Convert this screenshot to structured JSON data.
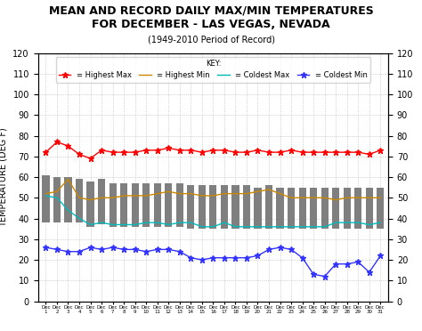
{
  "chart_data": {
    "type": "bar",
    "title": "MEAN AND RECORD DAILY MAX/MIN TEMPERATURES\nFOR DECEMBER - LAS VEGAS, NEVADA",
    "subtitle": "(1949-2010 Period of Record)",
    "y_label": "TEMPERATURE (DEG F)",
    "categories": [
      "Dec\n1",
      "Dec\n2",
      "Dec\n3",
      "Dec\n4",
      "Dec\n5",
      "Dec\n6",
      "Dec\n7",
      "Dec\n8",
      "Dec\n9",
      "Dec\n10",
      "Dec\n11",
      "Dec\n12",
      "Dec\n13",
      "Dec\n14",
      "Dec\n15",
      "Dec\n16",
      "Dec\n17",
      "Dec\n18",
      "Dec\n19",
      "Dec\n20",
      "Dec\n21",
      "Dec\n22",
      "Dec\n23",
      "Dec\n24",
      "Dec\n25",
      "Dec\n26",
      "Dec\n27",
      "Dec\n28",
      "Dec\n29",
      "Dec\n30",
      "Dec\n31"
    ],
    "series": [
      {
        "type": "bar",
        "bottoms": [
          38,
          38,
          38,
          38,
          36,
          37,
          36,
          36,
          36,
          36,
          36,
          36,
          36,
          35,
          35,
          35,
          35,
          35,
          35,
          35,
          35,
          35,
          35,
          35,
          35,
          35,
          35,
          35,
          35,
          35,
          35
        ],
        "values": [
          61,
          60,
          60,
          59,
          58,
          59,
          57,
          57,
          57,
          57,
          57,
          57,
          57,
          56,
          56,
          56,
          56,
          56,
          56,
          55,
          56,
          55,
          55,
          55,
          55,
          55,
          55,
          55,
          55,
          55,
          55
        ]
      },
      {
        "type": "line",
        "name": "= Highest Max",
        "color": "#ff0000",
        "marker": "star",
        "values": [
          72,
          77,
          75,
          71,
          69,
          73,
          72,
          72,
          72,
          73,
          73,
          74,
          73,
          73,
          72,
          73,
          73,
          72,
          72,
          73,
          72,
          72,
          73,
          72,
          72,
          72,
          72,
          72,
          72,
          71,
          73
        ]
      },
      {
        "type": "line",
        "name": "= Highest Min",
        "color": "#cc8800",
        "values": [
          52,
          53,
          59,
          50,
          49,
          50,
          50,
          51,
          51,
          51,
          52,
          53,
          52,
          52,
          51,
          51,
          52,
          52,
          52,
          53,
          54,
          52,
          50,
          50,
          50,
          50,
          49,
          50,
          50,
          50,
          50
        ]
      },
      {
        "type": "line",
        "name": "= Coldest Max",
        "color": "#00bbbb",
        "values": [
          51,
          50,
          44,
          40,
          37,
          38,
          37,
          37,
          37,
          38,
          38,
          37,
          38,
          38,
          36,
          36,
          38,
          36,
          36,
          36,
          36,
          36,
          36,
          36,
          36,
          36,
          38,
          38,
          38,
          37,
          38
        ]
      },
      {
        "type": "line",
        "name": "= Coldest Min",
        "color": "#3333ff",
        "marker": "star",
        "values": [
          26,
          25,
          24,
          24,
          26,
          25,
          26,
          25,
          25,
          24,
          25,
          25,
          24,
          21,
          20,
          21,
          21,
          21,
          21,
          22,
          25,
          26,
          25,
          21,
          13,
          12,
          18,
          18,
          19,
          14,
          22
        ]
      }
    ],
    "ylim": [
      0,
      120
    ],
    "yticks": [
      0,
      10,
      20,
      30,
      40,
      50,
      60,
      70,
      80,
      90,
      100,
      110,
      120
    ],
    "y2lim": [
      0,
      120
    ],
    "y2ticks": [
      0,
      10,
      20,
      30,
      40,
      50,
      60,
      70,
      80,
      90,
      100,
      110,
      120
    ],
    "grid": true,
    "legend": "upper center",
    "legend_title": "KEY:"
  }
}
